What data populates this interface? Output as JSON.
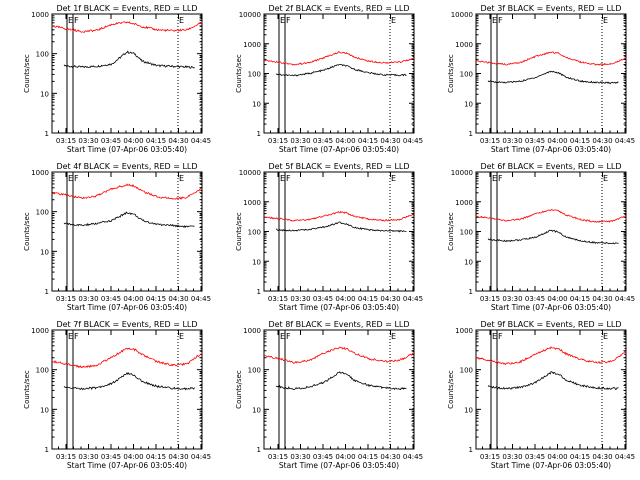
{
  "figure": {
    "legend_note": "BLACK = Events, RED = LLD",
    "xlabel": "Start Time (07-Apr-06 03:05:40)",
    "ylabel": "Counts/sec",
    "x_ticks": [
      "03:15",
      "03:30",
      "03:45",
      "04:00",
      "04:15",
      "04:30",
      "04:45"
    ],
    "y_ticks": [
      "1",
      "10",
      "100",
      "1000"
    ],
    "marker_labels": [
      "E",
      "F",
      "E"
    ],
    "colors": {
      "events": "#000000",
      "lld": "#ff0000",
      "axes": "#000000",
      "background": "#ffffff"
    }
  },
  "chart_data": [
    {
      "type": "line",
      "title": "Det 1f BLACK = Events, RED = LLD",
      "y_scale": "log",
      "ylim": [
        1,
        1000
      ],
      "xlim": [
        "03:05:40",
        "04:45:40"
      ],
      "x_unit": "minutes from 03:05:40",
      "series": [
        {
          "name": "Events",
          "color": "#000000",
          "x": [
            8,
            12,
            20,
            30,
            40,
            50,
            55,
            60,
            70,
            80,
            90,
            95
          ],
          "values": [
            50,
            48,
            46,
            48,
            55,
            110,
            100,
            65,
            50,
            48,
            46,
            45
          ]
        },
        {
          "name": "LLD",
          "color": "#ff0000",
          "x": [
            0,
            10,
            20,
            30,
            40,
            50,
            55,
            60,
            70,
            80,
            90,
            100
          ],
          "values": [
            500,
            420,
            360,
            390,
            550,
            620,
            560,
            480,
            400,
            380,
            400,
            600
          ]
        }
      ],
      "markers": [
        {
          "label": "E",
          "x": 10
        },
        {
          "label": "F",
          "x": 14
        },
        {
          "label": "E",
          "x": 84
        }
      ]
    },
    {
      "type": "line",
      "title": "Det 2f BLACK = Events, RED = LLD",
      "y_scale": "log",
      "ylim": [
        1,
        10000
      ],
      "xlim": [
        "03:05:40",
        "04:45:40"
      ],
      "x_unit": "minutes from 03:05:40",
      "series": [
        {
          "name": "Events",
          "color": "#000000",
          "x": [
            8,
            12,
            20,
            30,
            40,
            50,
            55,
            60,
            70,
            80,
            90,
            95
          ],
          "values": [
            95,
            90,
            85,
            100,
            130,
            200,
            180,
            140,
            105,
            90,
            88,
            90
          ]
        },
        {
          "name": "LLD",
          "color": "#ff0000",
          "x": [
            0,
            10,
            20,
            30,
            40,
            50,
            55,
            60,
            70,
            80,
            90,
            100
          ],
          "values": [
            280,
            240,
            200,
            230,
            340,
            520,
            480,
            360,
            260,
            230,
            240,
            320
          ]
        }
      ],
      "markers": [
        {
          "label": "E",
          "x": 10
        },
        {
          "label": "F",
          "x": 14
        },
        {
          "label": "E",
          "x": 84
        }
      ]
    },
    {
      "type": "line",
      "title": "Det 3f BLACK = Events, RED = LLD",
      "y_scale": "log",
      "ylim": [
        1,
        10000
      ],
      "xlim": [
        "03:05:40",
        "04:45:40"
      ],
      "x_unit": "minutes from 03:05:40",
      "series": [
        {
          "name": "Events",
          "color": "#000000",
          "x": [
            8,
            12,
            20,
            30,
            40,
            50,
            55,
            60,
            70,
            80,
            90,
            95
          ],
          "values": [
            55,
            52,
            50,
            55,
            75,
            120,
            105,
            75,
            55,
            50,
            48,
            50
          ]
        },
        {
          "name": "LLD",
          "color": "#ff0000",
          "x": [
            0,
            10,
            20,
            30,
            40,
            50,
            55,
            60,
            70,
            80,
            90,
            100
          ],
          "values": [
            260,
            230,
            200,
            240,
            380,
            520,
            480,
            350,
            240,
            200,
            210,
            330
          ]
        }
      ],
      "markers": [
        {
          "label": "E",
          "x": 10
        },
        {
          "label": "F",
          "x": 14
        },
        {
          "label": "E",
          "x": 84
        }
      ]
    },
    {
      "type": "line",
      "title": "Det 4f BLACK = Events, RED = LLD",
      "y_scale": "log",
      "ylim": [
        1,
        1000
      ],
      "xlim": [
        "03:05:40",
        "04:45:40"
      ],
      "x_unit": "minutes from 03:05:40",
      "series": [
        {
          "name": "Events",
          "color": "#000000",
          "x": [
            8,
            12,
            20,
            30,
            40,
            50,
            55,
            60,
            70,
            80,
            90,
            95
          ],
          "values": [
            50,
            48,
            45,
            50,
            60,
            95,
            85,
            60,
            48,
            45,
            42,
            42
          ]
        },
        {
          "name": "LLD",
          "color": "#ff0000",
          "x": [
            0,
            10,
            20,
            30,
            40,
            50,
            55,
            60,
            70,
            80,
            90,
            100
          ],
          "values": [
            300,
            260,
            220,
            250,
            380,
            480,
            440,
            330,
            240,
            210,
            230,
            380
          ]
        }
      ],
      "markers": [
        {
          "label": "E",
          "x": 10
        },
        {
          "label": "F",
          "x": 14
        },
        {
          "label": "E",
          "x": 84
        }
      ]
    },
    {
      "type": "line",
      "title": "Det 5f BLACK = Events, RED = LLD",
      "y_scale": "log",
      "ylim": [
        1,
        10000
      ],
      "xlim": [
        "03:05:40",
        "04:45:40"
      ],
      "x_unit": "minutes from 03:05:40",
      "series": [
        {
          "name": "Events",
          "color": "#000000",
          "x": [
            8,
            12,
            20,
            30,
            40,
            50,
            55,
            60,
            70,
            80,
            90,
            95
          ],
          "values": [
            115,
            112,
            108,
            115,
            140,
            200,
            180,
            140,
            112,
            105,
            102,
            105
          ]
        },
        {
          "name": "LLD",
          "color": "#ff0000",
          "x": [
            0,
            10,
            20,
            30,
            40,
            50,
            55,
            60,
            70,
            80,
            90,
            100
          ],
          "values": [
            300,
            270,
            230,
            250,
            330,
            450,
            420,
            330,
            260,
            235,
            250,
            380
          ]
        }
      ],
      "markers": [
        {
          "label": "E",
          "x": 10
        },
        {
          "label": "F",
          "x": 14
        },
        {
          "label": "E",
          "x": 84
        }
      ]
    },
    {
      "type": "line",
      "title": "Det 6f BLACK = Events, RED = LLD",
      "y_scale": "log",
      "ylim": [
        1,
        10000
      ],
      "xlim": [
        "03:05:40",
        "04:45:40"
      ],
      "x_unit": "minutes from 03:05:40",
      "series": [
        {
          "name": "Events",
          "color": "#000000",
          "x": [
            8,
            12,
            20,
            30,
            40,
            50,
            55,
            60,
            70,
            80,
            90,
            95
          ],
          "values": [
            55,
            52,
            48,
            52,
            65,
            110,
            95,
            65,
            48,
            42,
            40,
            40
          ]
        },
        {
          "name": "LLD",
          "color": "#ff0000",
          "x": [
            0,
            10,
            20,
            30,
            40,
            50,
            55,
            60,
            70,
            80,
            90,
            100
          ],
          "values": [
            320,
            280,
            230,
            260,
            400,
            530,
            490,
            360,
            250,
            210,
            220,
            330
          ]
        }
      ],
      "markers": [
        {
          "label": "E",
          "x": 10
        },
        {
          "label": "F",
          "x": 14
        },
        {
          "label": "E",
          "x": 84
        }
      ]
    },
    {
      "type": "line",
      "title": "Det 7f BLACK = Events, RED = LLD",
      "y_scale": "log",
      "ylim": [
        1,
        1000
      ],
      "xlim": [
        "03:05:40",
        "04:45:40"
      ],
      "x_unit": "minutes from 03:05:40",
      "series": [
        {
          "name": "Events",
          "color": "#000000",
          "x": [
            8,
            12,
            20,
            30,
            40,
            50,
            55,
            60,
            70,
            80,
            90,
            95
          ],
          "values": [
            38,
            35,
            33,
            35,
            45,
            80,
            72,
            50,
            38,
            34,
            33,
            34
          ]
        },
        {
          "name": "LLD",
          "color": "#ff0000",
          "x": [
            0,
            10,
            20,
            30,
            40,
            50,
            55,
            60,
            70,
            80,
            90,
            100
          ],
          "values": [
            160,
            140,
            115,
            130,
            210,
            340,
            320,
            240,
            160,
            130,
            140,
            260
          ]
        }
      ],
      "markers": [
        {
          "label": "E",
          "x": 10
        },
        {
          "label": "F",
          "x": 14
        },
        {
          "label": "E",
          "x": 84
        }
      ]
    },
    {
      "type": "line",
      "title": "Det 8f BLACK = Events, RED = LLD",
      "y_scale": "log",
      "ylim": [
        1,
        1000
      ],
      "xlim": [
        "03:05:40",
        "04:45:40"
      ],
      "x_unit": "minutes from 03:05:40",
      "series": [
        {
          "name": "Events",
          "color": "#000000",
          "x": [
            8,
            12,
            20,
            30,
            40,
            50,
            55,
            60,
            70,
            80,
            90,
            95
          ],
          "values": [
            38,
            36,
            33,
            36,
            48,
            85,
            78,
            55,
            40,
            35,
            33,
            34
          ]
        },
        {
          "name": "LLD",
          "color": "#ff0000",
          "x": [
            0,
            10,
            20,
            30,
            40,
            50,
            55,
            60,
            70,
            80,
            90,
            100
          ],
          "values": [
            220,
            190,
            150,
            170,
            260,
            360,
            340,
            260,
            190,
            160,
            170,
            260
          ]
        }
      ],
      "markers": [
        {
          "label": "E",
          "x": 10
        },
        {
          "label": "F",
          "x": 14
        },
        {
          "label": "E",
          "x": 84
        }
      ]
    },
    {
      "type": "line",
      "title": "Det 9f BLACK = Events, RED = LLD",
      "y_scale": "log",
      "ylim": [
        1,
        1000
      ],
      "xlim": [
        "03:05:40",
        "04:45:40"
      ],
      "x_unit": "minutes from 03:05:40",
      "series": [
        {
          "name": "Events",
          "color": "#000000",
          "x": [
            8,
            12,
            20,
            30,
            40,
            50,
            55,
            60,
            70,
            80,
            90,
            95
          ],
          "values": [
            38,
            36,
            33,
            36,
            48,
            85,
            78,
            55,
            40,
            35,
            33,
            34
          ]
        },
        {
          "name": "LLD",
          "color": "#ff0000",
          "x": [
            0,
            10,
            20,
            30,
            40,
            50,
            55,
            60,
            70,
            80,
            90,
            100
          ],
          "values": [
            200,
            170,
            140,
            160,
            250,
            360,
            340,
            250,
            180,
            150,
            160,
            280
          ]
        }
      ],
      "markers": [
        {
          "label": "E",
          "x": 10
        },
        {
          "label": "F",
          "x": 14
        },
        {
          "label": "E",
          "x": 84
        }
      ]
    }
  ]
}
